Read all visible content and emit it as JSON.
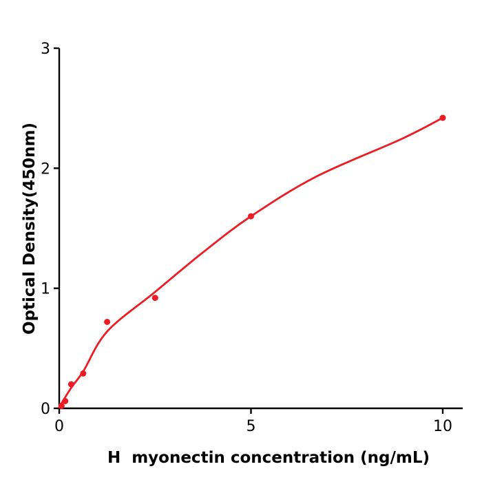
{
  "page": {
    "background": "#ffffff"
  },
  "chart_data": {
    "type": "scatter",
    "title": "",
    "xlabel": "H  myonectin concentration (ng/mL)",
    "ylabel": "Optical Density(450nm)",
    "xlim": [
      0,
      10.55
    ],
    "ylim": [
      0,
      3
    ],
    "xticks": [
      0,
      5,
      10
    ],
    "yticks": [
      0,
      1,
      2,
      3
    ],
    "grid": false,
    "legend_position": "none",
    "axis_color": "#000000",
    "point_color": "#ed1c24",
    "curve_color": "#ed1c24",
    "series": [
      {
        "name": "standard data points",
        "style": "scatter",
        "points": [
          [
            0.06,
            0.02
          ],
          [
            0.156,
            0.06
          ],
          [
            0.313,
            0.2
          ],
          [
            0.625,
            0.29
          ],
          [
            1.25,
            0.72
          ],
          [
            2.5,
            0.92
          ],
          [
            5,
            1.6
          ],
          [
            10,
            2.42
          ]
        ]
      },
      {
        "name": "fitted curve",
        "style": "line",
        "points": [
          [
            0,
            0.01
          ],
          [
            0.31,
            0.17
          ],
          [
            0.63,
            0.31
          ],
          [
            1.25,
            0.64
          ],
          [
            2.5,
            0.97
          ],
          [
            3.75,
            1.3
          ],
          [
            5,
            1.6
          ],
          [
            6.7,
            1.93
          ],
          [
            8.9,
            2.24
          ],
          [
            10,
            2.42
          ]
        ]
      }
    ]
  }
}
